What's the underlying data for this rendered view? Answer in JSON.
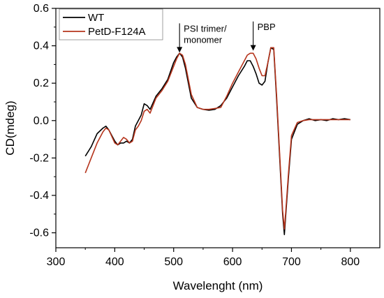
{
  "chart_data": {
    "type": "line",
    "title": "",
    "xlabel": "Wavelenght (nm)",
    "ylabel": "CD(mdeg)",
    "xlim": [
      300,
      850
    ],
    "ylim": [
      -0.68,
      0.6
    ],
    "xticks": [
      "300",
      "400",
      "500",
      "600",
      "700",
      "800"
    ],
    "yticks": [
      "0.6",
      "0.4",
      "0.2",
      "0.0",
      "-0.2",
      "-0.4",
      "-0.6"
    ],
    "grid": false,
    "legend_position": "top-left",
    "series": [
      {
        "name": "WT",
        "color": "#000000",
        "x": [
          350,
          360,
          370,
          380,
          385,
          390,
          400,
          405,
          410,
          415,
          420,
          425,
          430,
          435,
          440,
          445,
          450,
          455,
          460,
          470,
          480,
          490,
          500,
          505,
          510,
          515,
          520,
          530,
          540,
          550,
          560,
          570,
          580,
          590,
          600,
          610,
          620,
          625,
          630,
          635,
          640,
          645,
          650,
          655,
          660,
          665,
          670,
          675,
          680,
          685,
          688,
          690,
          695,
          700,
          710,
          720,
          730,
          740,
          750,
          760,
          770,
          780,
          790,
          800
        ],
        "y": [
          -0.19,
          -0.14,
          -0.07,
          -0.04,
          -0.03,
          -0.05,
          -0.11,
          -0.13,
          -0.12,
          -0.12,
          -0.11,
          -0.12,
          -0.1,
          -0.03,
          0.0,
          0.03,
          0.09,
          0.08,
          0.06,
          0.13,
          0.17,
          0.22,
          0.31,
          0.34,
          0.36,
          0.34,
          0.28,
          0.12,
          0.07,
          0.06,
          0.055,
          0.06,
          0.08,
          0.12,
          0.18,
          0.24,
          0.29,
          0.32,
          0.32,
          0.29,
          0.25,
          0.2,
          0.19,
          0.21,
          0.31,
          0.39,
          0.38,
          0.1,
          -0.2,
          -0.5,
          -0.61,
          -0.52,
          -0.3,
          -0.1,
          -0.02,
          0.0,
          0.01,
          0.0,
          0.005,
          0.0,
          0.01,
          0.005,
          0.01,
          0.005
        ]
      },
      {
        "name": "PetD-F124A",
        "color": "#b5341c",
        "x": [
          350,
          360,
          370,
          380,
          385,
          390,
          400,
          405,
          410,
          415,
          420,
          425,
          430,
          435,
          440,
          445,
          450,
          455,
          460,
          470,
          480,
          490,
          500,
          505,
          510,
          515,
          520,
          530,
          540,
          550,
          560,
          570,
          580,
          590,
          600,
          610,
          620,
          625,
          630,
          635,
          640,
          645,
          650,
          655,
          660,
          665,
          670,
          675,
          680,
          685,
          688,
          690,
          695,
          700,
          710,
          720,
          730,
          740,
          750,
          760,
          770,
          780,
          790,
          800
        ],
        "y": [
          -0.28,
          -0.2,
          -0.12,
          -0.06,
          -0.04,
          -0.05,
          -0.12,
          -0.13,
          -0.11,
          -0.09,
          -0.1,
          -0.12,
          -0.11,
          -0.05,
          -0.03,
          0.0,
          0.05,
          0.06,
          0.04,
          0.12,
          0.16,
          0.21,
          0.29,
          0.33,
          0.36,
          0.35,
          0.3,
          0.14,
          0.07,
          0.06,
          0.06,
          0.065,
          0.07,
          0.13,
          0.2,
          0.26,
          0.32,
          0.35,
          0.36,
          0.36,
          0.33,
          0.28,
          0.24,
          0.24,
          0.31,
          0.39,
          0.39,
          0.12,
          -0.18,
          -0.48,
          -0.58,
          -0.5,
          -0.28,
          -0.08,
          -0.01,
          0.0,
          0.005,
          0.005,
          0.005,
          0.005,
          0.005,
          0.005,
          0.005,
          0.005
        ]
      }
    ],
    "annotations": [
      {
        "text": [
          "PSI trimer/",
          "monomer"
        ],
        "x": 510,
        "y_tip": 0.36,
        "y_tail": 0.52
      },
      {
        "text": [
          "PBP"
        ],
        "x": 635,
        "y_tip": 0.37,
        "y_tail": 0.53
      }
    ]
  }
}
